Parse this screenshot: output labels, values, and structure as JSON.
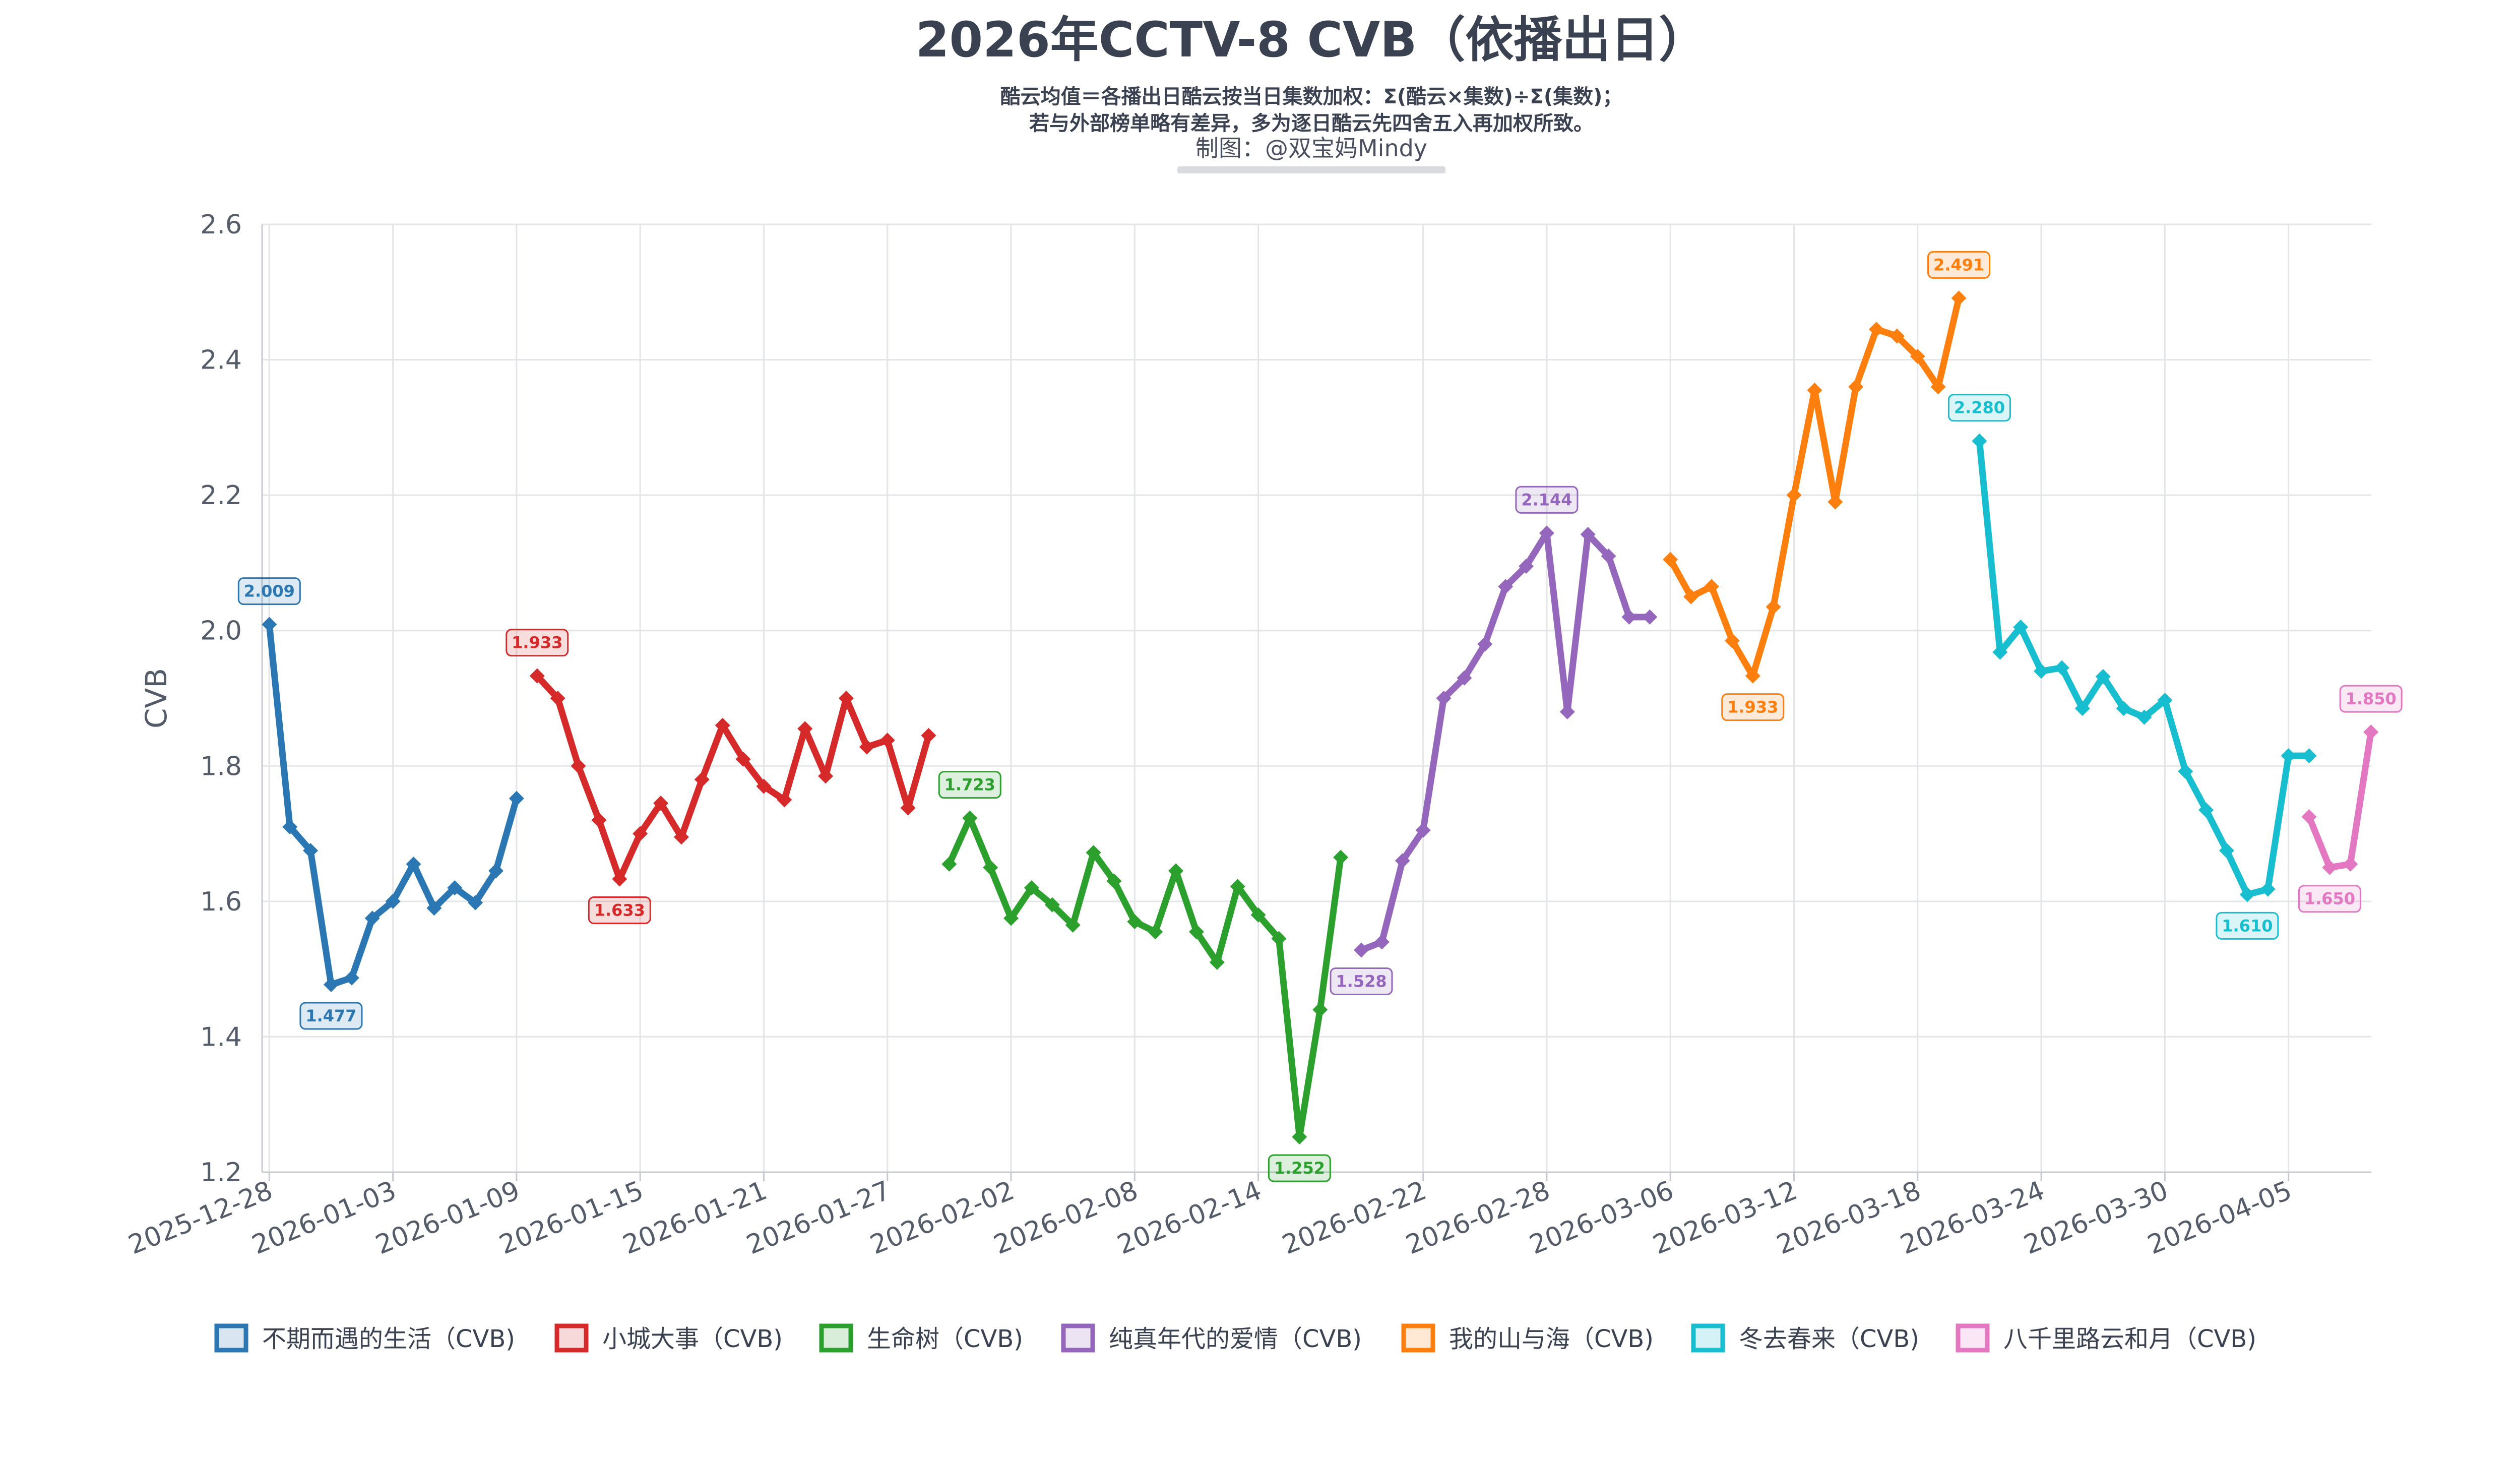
{
  "chart_data": {
    "type": "line",
    "title": "2026年CCTV-8 CVB（依播出日）",
    "subtitle_lines": [
      "酷云均值＝各播出日酷云按当日集数加权：Σ(酷云×集数)÷Σ(集数)；",
      "若与外部榜单略有差异，多为逐日酷云先四舍五入再加权所致。"
    ],
    "credit": "制图：@双宝妈Mindy",
    "ylabel": "CVB",
    "xlabel": "",
    "ylim": [
      1.2,
      2.6
    ],
    "y_ticks": [
      "1.2",
      "1.4",
      "1.6",
      "1.8",
      "2.0",
      "2.2",
      "2.4",
      "2.6"
    ],
    "x_start": "2025-12-28",
    "x_end": "2026-04-09",
    "x_ticks": [
      "2025-12-28",
      "2026-01-03",
      "2026-01-09",
      "2026-01-15",
      "2026-01-21",
      "2026-01-27",
      "2026-02-02",
      "2026-02-08",
      "2026-02-14",
      "2026-02-22",
      "2026-02-28",
      "2026-03-06",
      "2026-03-12",
      "2026-03-18",
      "2026-03-24",
      "2026-03-30",
      "2026-04-05"
    ],
    "grid": true,
    "legend_position": "bottom",
    "series": [
      {
        "name": "不期而遇的生活（CVB)",
        "color": "#2a77b4",
        "x": [
          "2025-12-28",
          "2025-12-29",
          "2025-12-30",
          "2025-12-31",
          "2026-01-01",
          "2026-01-02",
          "2026-01-03",
          "2026-01-04",
          "2026-01-05",
          "2026-01-06",
          "2026-01-07",
          "2026-01-08",
          "2026-01-09"
        ],
        "y": [
          2.009,
          1.71,
          1.675,
          1.477,
          1.487,
          1.575,
          1.6,
          1.655,
          1.59,
          1.62,
          1.598,
          1.645,
          1.752
        ],
        "labels": [
          {
            "x": "2025-12-28",
            "y": 2.009,
            "text": "2.009",
            "pos": "above"
          },
          {
            "x": "2025-12-31",
            "y": 1.477,
            "text": "1.477",
            "pos": "below"
          }
        ]
      },
      {
        "name": "小城大事（CVB)",
        "color": "#d62a2a",
        "x": [
          "2026-01-10",
          "2026-01-11",
          "2026-01-12",
          "2026-01-13",
          "2026-01-14",
          "2026-01-15",
          "2026-01-16",
          "2026-01-17",
          "2026-01-18",
          "2026-01-19",
          "2026-01-20",
          "2026-01-21",
          "2026-01-22",
          "2026-01-23",
          "2026-01-24",
          "2026-01-25",
          "2026-01-26",
          "2026-01-27",
          "2026-01-28",
          "2026-01-29"
        ],
        "y": [
          1.933,
          1.9,
          1.8,
          1.72,
          1.633,
          1.7,
          1.745,
          1.695,
          1.78,
          1.86,
          1.81,
          1.77,
          1.75,
          1.855,
          1.785,
          1.9,
          1.828,
          1.838,
          1.738,
          1.845
        ],
        "labels": [
          {
            "x": "2026-01-10",
            "y": 1.933,
            "text": "1.933",
            "pos": "above"
          },
          {
            "x": "2026-01-14",
            "y": 1.633,
            "text": "1.633",
            "pos": "below"
          }
        ]
      },
      {
        "name": "生命树（CVB)",
        "color": "#2ca02c",
        "x": [
          "2026-01-30",
          "2026-01-31",
          "2026-02-01",
          "2026-02-02",
          "2026-02-03",
          "2026-02-04",
          "2026-02-05",
          "2026-02-06",
          "2026-02-07",
          "2026-02-08",
          "2026-02-09",
          "2026-02-10",
          "2026-02-11",
          "2026-02-12",
          "2026-02-13",
          "2026-02-14",
          "2026-02-15",
          "2026-02-16",
          "2026-02-17",
          "2026-02-18"
        ],
        "y": [
          1.655,
          1.723,
          1.65,
          1.575,
          1.62,
          1.595,
          1.565,
          1.672,
          1.63,
          1.57,
          1.555,
          1.645,
          1.555,
          1.51,
          1.622,
          1.58,
          1.545,
          1.252,
          1.44,
          1.665
        ],
        "labels": [
          {
            "x": "2026-01-31",
            "y": 1.723,
            "text": "1.723",
            "pos": "above"
          },
          {
            "x": "2026-02-16",
            "y": 1.252,
            "text": "1.252",
            "pos": "below"
          }
        ]
      },
      {
        "name": "纯真年代的爱情（CVB)",
        "color": "#9467bd",
        "x": [
          "2026-02-19",
          "2026-02-20",
          "2026-02-21",
          "2026-02-22",
          "2026-02-23",
          "2026-02-24",
          "2026-02-25",
          "2026-02-26",
          "2026-02-27",
          "2026-02-28",
          "2026-03-01",
          "2026-03-02",
          "2026-03-03",
          "2026-03-04",
          "2026-03-05"
        ],
        "y": [
          1.528,
          1.54,
          1.66,
          1.705,
          1.9,
          1.93,
          1.98,
          2.065,
          2.095,
          2.144,
          1.88,
          2.142,
          2.11,
          2.02,
          2.02
        ],
        "labels": [
          {
            "x": "2026-02-19",
            "y": 1.528,
            "text": "1.528",
            "pos": "below"
          },
          {
            "x": "2026-02-28",
            "y": 2.144,
            "text": "2.144",
            "pos": "above"
          }
        ]
      },
      {
        "name": "我的山与海（CVB)",
        "color": "#ff7f0e",
        "x": [
          "2026-03-06",
          "2026-03-07",
          "2026-03-08",
          "2026-03-09",
          "2026-03-10",
          "2026-03-11",
          "2026-03-12",
          "2026-03-13",
          "2026-03-14",
          "2026-03-15",
          "2026-03-16",
          "2026-03-17",
          "2026-03-18",
          "2026-03-19",
          "2026-03-20"
        ],
        "y": [
          2.105,
          2.05,
          2.065,
          1.985,
          1.933,
          2.035,
          2.2,
          2.355,
          2.19,
          2.36,
          2.445,
          2.435,
          2.405,
          2.36,
          2.491
        ],
        "labels": [
          {
            "x": "2026-03-10",
            "y": 1.933,
            "text": "1.933",
            "pos": "below"
          },
          {
            "x": "2026-03-20",
            "y": 2.491,
            "text": "2.491",
            "pos": "above"
          }
        ]
      },
      {
        "name": "冬去春来（CVB)",
        "color": "#17becf",
        "x": [
          "2026-03-21",
          "2026-03-22",
          "2026-03-23",
          "2026-03-24",
          "2026-03-25",
          "2026-03-26",
          "2026-03-27",
          "2026-03-28",
          "2026-03-29",
          "2026-03-30",
          "2026-03-31",
          "2026-04-01",
          "2026-04-02",
          "2026-04-03",
          "2026-04-04",
          "2026-04-05",
          "2026-04-06"
        ],
        "y": [
          2.28,
          1.968,
          2.005,
          1.94,
          1.945,
          1.885,
          1.932,
          1.885,
          1.872,
          1.897,
          1.792,
          1.735,
          1.675,
          1.61,
          1.618,
          1.815,
          1.815
        ],
        "labels": [
          {
            "x": "2026-03-21",
            "y": 2.28,
            "text": "2.280",
            "pos": "above"
          },
          {
            "x": "2026-04-03",
            "y": 1.61,
            "text": "1.610",
            "pos": "below"
          }
        ]
      },
      {
        "name": "八千里路云和月（CVB)",
        "color": "#e377c2",
        "x": [
          "2026-04-06",
          "2026-04-07",
          "2026-04-08",
          "2026-04-09"
        ],
        "y": [
          1.725,
          1.65,
          1.655,
          1.85
        ],
        "labels": [
          {
            "x": "2026-04-07",
            "y": 1.65,
            "text": "1.650",
            "pos": "below"
          },
          {
            "x": "2026-04-09",
            "y": 1.85,
            "text": "1.850",
            "pos": "above"
          }
        ]
      }
    ]
  }
}
